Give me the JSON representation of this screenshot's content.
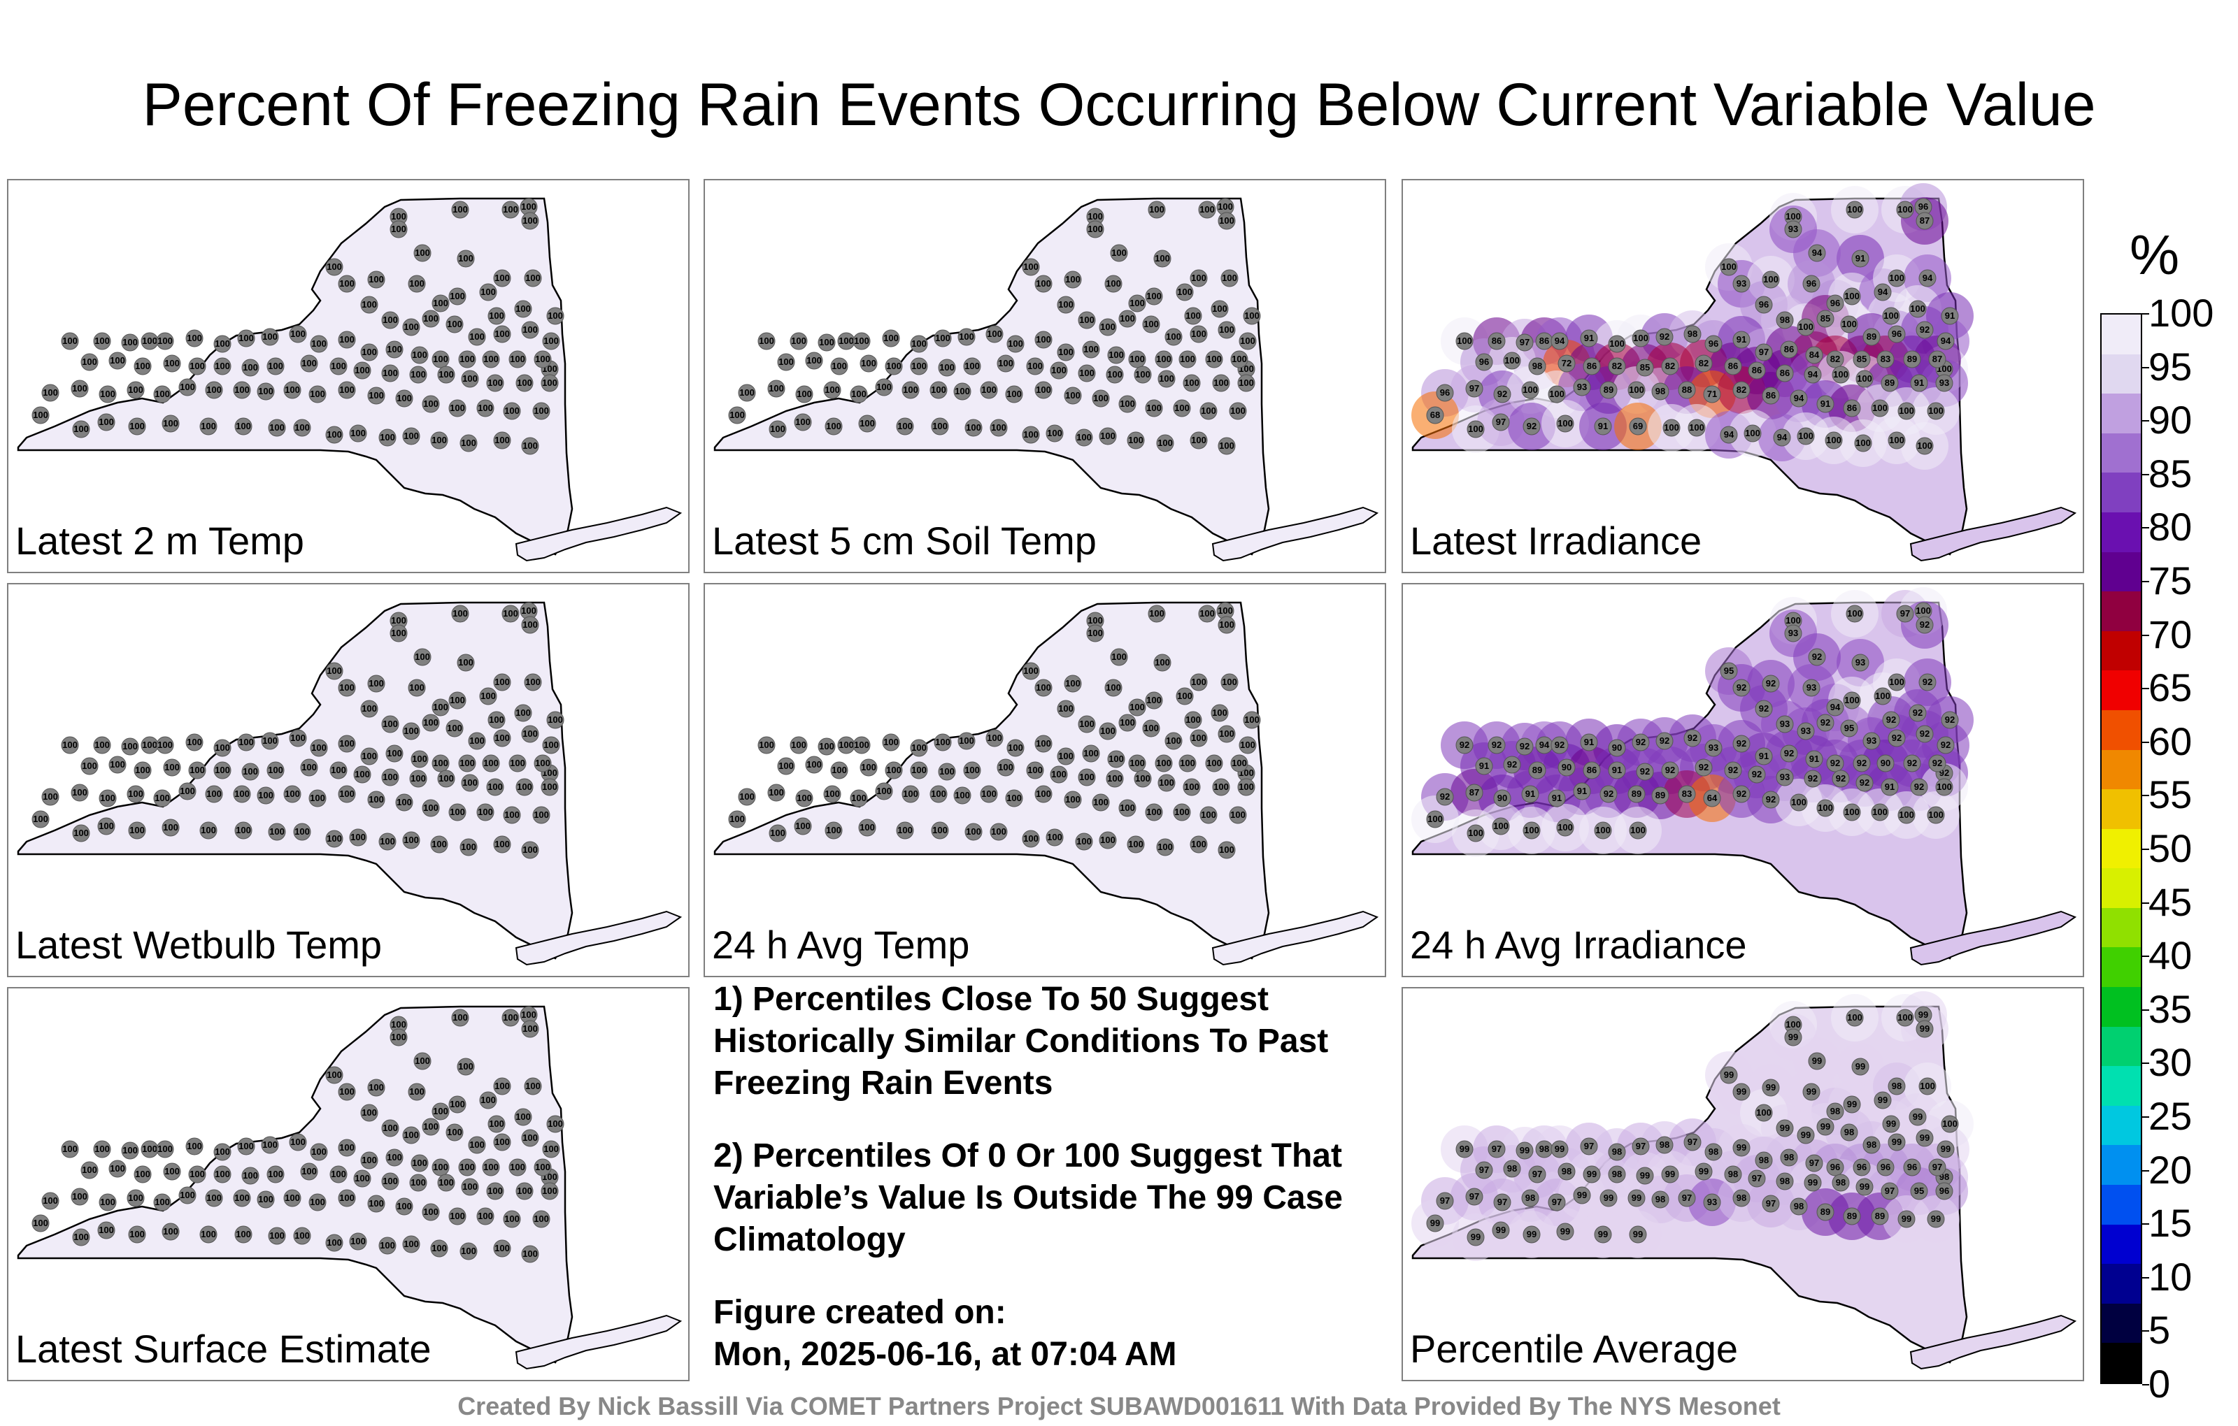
{
  "title": "Percent Of Freezing Rain Events Occurring Below Current Variable Value",
  "panels": [
    {
      "label": "Latest 2 m Temp",
      "style": "flat",
      "stations": [
        "100",
        "100",
        "100",
        "100",
        "100",
        "100",
        "100",
        "100",
        "100",
        "100",
        "100",
        "100",
        "100",
        "100",
        "100",
        "100",
        "100",
        "100",
        "100",
        "100",
        "100",
        "100",
        "100",
        "100",
        "100",
        "100",
        "100",
        "100",
        "100",
        "100",
        "100",
        "100",
        "100",
        "100",
        "100",
        "100",
        "100",
        "100",
        "100",
        "100",
        "100",
        "100",
        "100",
        "100",
        "100",
        "100",
        "100",
        "100",
        "100",
        "100",
        "100",
        "100",
        "100",
        "100",
        "100",
        "100",
        "100",
        "100",
        "100",
        "100",
        "100",
        "100",
        "100",
        "100",
        "100",
        "100",
        "100",
        "100",
        "100",
        "100",
        "100",
        "100",
        "100",
        "100",
        "100",
        "100",
        "100",
        "100",
        "100",
        "100",
        "100",
        "100",
        "100",
        "100",
        "100",
        "100",
        "100",
        "100",
        "100",
        "100",
        "100",
        "100",
        "100",
        "100",
        "100",
        "100",
        "100",
        "100",
        "100",
        "100",
        "100",
        "100",
        "100",
        "100"
      ]
    },
    {
      "label": "Latest 5 cm Soil Temp",
      "style": "flat",
      "stations": [
        "100",
        "100",
        "100",
        "100",
        "100",
        "100",
        "100",
        "100",
        "100",
        "100",
        "100",
        "100",
        "100",
        "100",
        "100",
        "100",
        "100",
        "100",
        "100",
        "100",
        "100",
        "100",
        "100",
        "100",
        "100",
        "100",
        "100",
        "100",
        "100",
        "100",
        "100",
        "100",
        "100",
        "100",
        "100",
        "100",
        "100",
        "100",
        "100",
        "100",
        "100",
        "100",
        "100",
        "100",
        "100",
        "100",
        "100",
        "100",
        "100",
        "100",
        "100",
        "100",
        "100",
        "100",
        "100",
        "100",
        "100",
        "100",
        "100",
        "100",
        "100",
        "100",
        "100",
        "100",
        "100",
        "100",
        "100",
        "100",
        "100",
        "100",
        "100",
        "100",
        "100",
        "100",
        "100",
        "100",
        "100",
        "100",
        "100",
        "100",
        "100",
        "100",
        "100",
        "100",
        "100",
        "100",
        "100",
        "100",
        "100",
        "100",
        "100",
        "100",
        "100",
        "100",
        "100",
        "100",
        "100",
        "100",
        "100",
        "100",
        "100",
        "100",
        "100",
        "100"
      ]
    },
    {
      "label": "Latest Irradiance",
      "style": "irradiance",
      "stations": [
        "100",
        "100",
        "100",
        "96",
        "93",
        "87",
        "91",
        "94",
        "100",
        "93",
        "100",
        "96",
        "96",
        "100",
        "94",
        "100",
        "94",
        "100",
        "100",
        "91",
        "96",
        "98",
        "100",
        "85",
        "100",
        "89",
        "96",
        "92",
        "94",
        "100",
        "100",
        "86",
        "97",
        "86",
        "94",
        "91",
        "100",
        "100",
        "92",
        "98",
        "96",
        "91",
        "97",
        "86",
        "84",
        "82",
        "85",
        "83",
        "89",
        "87",
        "96",
        "100",
        "98",
        "72",
        "86",
        "82",
        "85",
        "82",
        "82",
        "86",
        "86",
        "86",
        "94",
        "100",
        "100",
        "89",
        "91",
        "93",
        "96",
        "97",
        "92",
        "100",
        "100",
        "93",
        "89",
        "100",
        "98",
        "88",
        "71",
        "82",
        "86",
        "94",
        "91",
        "86",
        "100",
        "100",
        "100",
        "68",
        "100",
        "97",
        "92",
        "100",
        "91",
        "69",
        "100",
        "100",
        "94",
        "100",
        "94",
        "100",
        "100",
        "100",
        "100",
        "100"
      ]
    },
    {
      "label": "Latest Wetbulb Temp",
      "style": "flat",
      "stations": [
        "100",
        "100",
        "100",
        "100",
        "100",
        "100",
        "100",
        "100",
        "100",
        "100",
        "100",
        "100",
        "100",
        "100",
        "100",
        "100",
        "100",
        "100",
        "100",
        "100",
        "100",
        "100",
        "100",
        "100",
        "100",
        "100",
        "100",
        "100",
        "100",
        "100",
        "100",
        "100",
        "100",
        "100",
        "100",
        "100",
        "100",
        "100",
        "100",
        "100",
        "100",
        "100",
        "100",
        "100",
        "100",
        "100",
        "100",
        "100",
        "100",
        "100",
        "100",
        "100",
        "100",
        "100",
        "100",
        "100",
        "100",
        "100",
        "100",
        "100",
        "100",
        "100",
        "100",
        "100",
        "100",
        "100",
        "100",
        "100",
        "100",
        "100",
        "100",
        "100",
        "100",
        "100",
        "100",
        "100",
        "100",
        "100",
        "100",
        "100",
        "100",
        "100",
        "100",
        "100",
        "100",
        "100",
        "100",
        "100",
        "100",
        "100",
        "100",
        "100",
        "100",
        "100",
        "100",
        "100",
        "100",
        "100",
        "100",
        "100",
        "100",
        "100",
        "100",
        "100"
      ]
    },
    {
      "label": "24 h Avg Temp",
      "style": "flat",
      "stations": [
        "100",
        "100",
        "100",
        "100",
        "100",
        "100",
        "100",
        "100",
        "100",
        "100",
        "100",
        "100",
        "100",
        "100",
        "100",
        "100",
        "100",
        "100",
        "100",
        "100",
        "100",
        "100",
        "100",
        "100",
        "100",
        "100",
        "100",
        "100",
        "100",
        "100",
        "100",
        "100",
        "100",
        "100",
        "100",
        "100",
        "100",
        "100",
        "100",
        "100",
        "100",
        "100",
        "100",
        "100",
        "100",
        "100",
        "100",
        "100",
        "100",
        "100",
        "100",
        "100",
        "100",
        "100",
        "100",
        "100",
        "100",
        "100",
        "100",
        "100",
        "100",
        "100",
        "100",
        "100",
        "100",
        "100",
        "100",
        "100",
        "100",
        "100",
        "100",
        "100",
        "100",
        "100",
        "100",
        "100",
        "100",
        "100",
        "100",
        "100",
        "100",
        "100",
        "100",
        "100",
        "100",
        "100",
        "100",
        "100",
        "100",
        "100",
        "100",
        "100",
        "100",
        "100",
        "100",
        "100",
        "100",
        "100",
        "100",
        "100",
        "100",
        "100",
        "100",
        "100"
      ]
    },
    {
      "label": "24 h Avg Irradiance",
      "style": "avg-irradiance",
      "stations": [
        "100",
        "100",
        "97",
        "100",
        "93",
        "92",
        "93",
        "92",
        "95",
        "92",
        "92",
        "93",
        "94",
        "100",
        "100",
        "100",
        "92",
        "92",
        "92",
        "92",
        "92",
        "93",
        "93",
        "92",
        "95",
        "93",
        "92",
        "92",
        "92",
        "92",
        "92",
        "92",
        "92",
        "94",
        "92",
        "91",
        "90",
        "92",
        "92",
        "92",
        "93",
        "92",
        "91",
        "92",
        "91",
        "92",
        "92",
        "90",
        "92",
        "92",
        "91",
        "92",
        "89",
        "90",
        "86",
        "91",
        "92",
        "92",
        "92",
        "92",
        "92",
        "93",
        "92",
        "92",
        "92",
        "91",
        "92",
        "100",
        "92",
        "87",
        "90",
        "91",
        "91",
        "91",
        "92",
        "89",
        "89",
        "83",
        "64",
        "92",
        "92",
        "100",
        "100",
        "100",
        "100",
        "100",
        "100",
        "100",
        "100",
        "100",
        "100",
        "100",
        "100",
        "100"
      ]
    },
    {
      "label": "Latest Surface Estimate",
      "style": "flat",
      "stations": [
        "100",
        "100",
        "100",
        "100",
        "100",
        "100",
        "100",
        "100",
        "100",
        "100",
        "100",
        "100",
        "100",
        "100",
        "100",
        "100",
        "100",
        "100",
        "100",
        "100",
        "100",
        "100",
        "100",
        "100",
        "100",
        "100",
        "100",
        "100",
        "100",
        "100",
        "100",
        "100",
        "100",
        "100",
        "100",
        "100",
        "100",
        "100",
        "100",
        "100",
        "100",
        "100",
        "100",
        "100",
        "100",
        "100",
        "100",
        "100",
        "100",
        "100",
        "100",
        "100",
        "100",
        "100",
        "100",
        "100",
        "100",
        "100",
        "100",
        "100",
        "100",
        "100",
        "100",
        "100",
        "100",
        "100",
        "100",
        "100",
        "100",
        "100",
        "100",
        "100",
        "100",
        "100",
        "100",
        "100",
        "100",
        "100",
        "100",
        "100",
        "100",
        "100",
        "100",
        "100",
        "100",
        "100",
        "100",
        "100",
        "100",
        "100",
        "100",
        "100",
        "100",
        "100",
        "100",
        "100",
        "100",
        "100",
        "100",
        "100",
        "100",
        "100",
        "100",
        "100"
      ]
    },
    {
      "label": "Percentile Average",
      "style": "average",
      "stations": [
        "100",
        "100",
        "100",
        "99",
        "99",
        "99",
        "99",
        "99",
        "99",
        "99",
        "99",
        "99",
        "98",
        "99",
        "99",
        "98",
        "100",
        "99",
        "99",
        "100",
        "100",
        "99",
        "99",
        "99",
        "98",
        "98",
        "99",
        "99",
        "99",
        "98",
        "99",
        "97",
        "99",
        "98",
        "99",
        "97",
        "98",
        "97",
        "98",
        "97",
        "98",
        "99",
        "98",
        "98",
        "97",
        "96",
        "96",
        "96",
        "96",
        "97",
        "97",
        "98",
        "97",
        "98",
        "99",
        "98",
        "99",
        "99",
        "99",
        "98",
        "97",
        "98",
        "99",
        "98",
        "99",
        "97",
        "95",
        "96",
        "97",
        "97",
        "97",
        "98",
        "97",
        "99",
        "99",
        "99",
        "98",
        "97",
        "93",
        "98",
        "97",
        "98",
        "89",
        "89",
        "89",
        "99",
        "99",
        "99",
        "99",
        "99",
        "99",
        "99",
        "99",
        "99"
      ]
    }
  ],
  "notes": [
    "1) Percentiles Close To 50 Suggest Historically Similar Conditions To Past Freezing Rain Events",
    "2) Percentiles Of 0 Or 100 Suggest That Variable’s Value Is Outside The 99 Case Climatology",
    "Figure created on:",
    "Mon, 2025-06-16, at 07:04 AM"
  ],
  "colorbar": {
    "title": "%",
    "ticks": [
      "100",
      "95",
      "90",
      "85",
      "80",
      "75",
      "70",
      "65",
      "60",
      "55",
      "50",
      "45",
      "40",
      "35",
      "30",
      "25",
      "20",
      "15",
      "10",
      "5",
      "0"
    ],
    "colors": [
      "#000000",
      "#000040",
      "#000090",
      "#0000d0",
      "#0050f0",
      "#0090f0",
      "#00c8e0",
      "#00e0b0",
      "#00d070",
      "#00c020",
      "#40d000",
      "#90e000",
      "#d8f000",
      "#f0f000",
      "#f0c000",
      "#f08800",
      "#f05000",
      "#f00000",
      "#c00000",
      "#900040",
      "#600090",
      "#6a10b0",
      "#8040c0",
      "#a070d0",
      "#c0a0e0",
      "#e0d8f0",
      "#f0ecf8"
    ]
  },
  "footer": "Created By Nick Bassill Via COMET Partners Project SUBAWD001611 With Data Provided By The NYS Mesonet"
}
